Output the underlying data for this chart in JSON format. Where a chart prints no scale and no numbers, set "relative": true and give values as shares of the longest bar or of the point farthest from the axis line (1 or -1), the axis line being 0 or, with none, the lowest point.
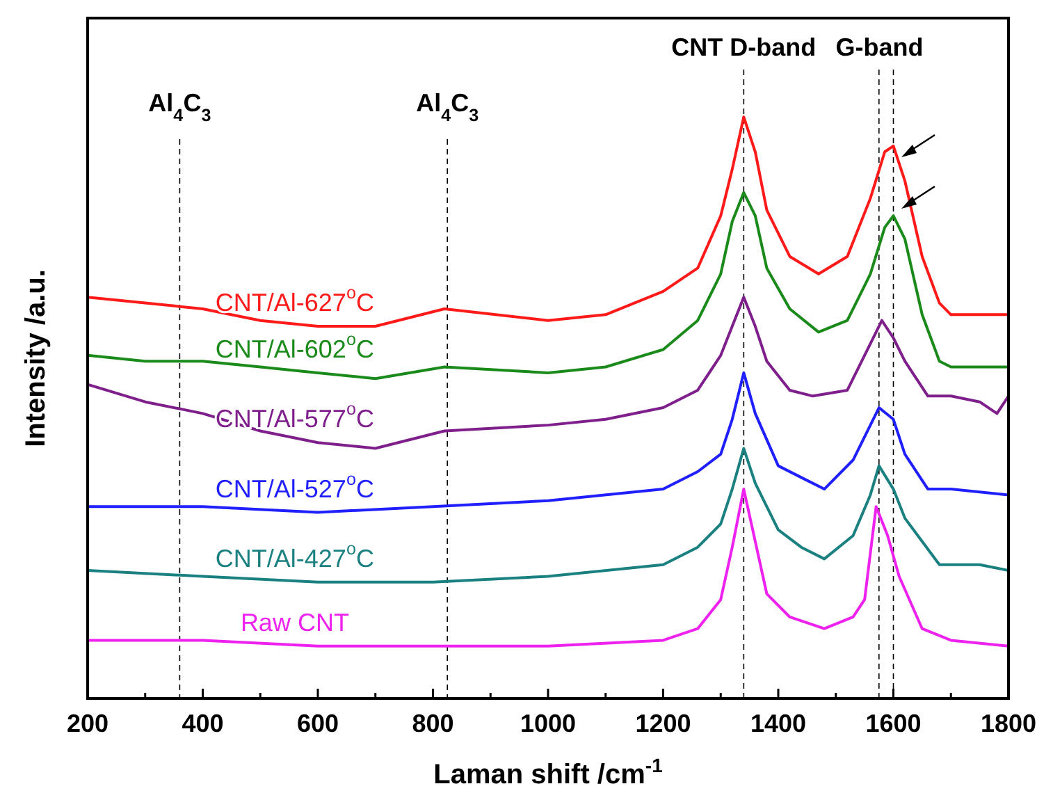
{
  "chart_data": {
    "type": "line",
    "relative": true,
    "xlabel": "Laman shift /cm$^{-1}$",
    "ylabel": "Intensity /a.u.",
    "xlim": [
      200,
      1800
    ],
    "xticks": [
      200,
      {
        "value": 300,
        "label": null
      },
      400,
      {
        "value": 500,
        "label": null
      },
      600,
      {
        "value": 700,
        "label": null
      },
      800,
      {
        "value": 900,
        "label": null
      },
      1000,
      {
        "value": 1100,
        "label": null
      },
      1200,
      {
        "value": 1300,
        "label": null
      },
      1400,
      {
        "value": 1500,
        "label": null
      },
      1600,
      {
        "value": 1700,
        "label": null
      },
      1800
    ],
    "tick_labels": "x",
    "grid": false,
    "marker": "none",
    "line_style": "solid",
    "ref_lines": [
      {
        "axis": "x",
        "value": 360,
        "label": "Al$_{4}$C$_{3}$",
        "color": "#000000",
        "line_style": "dashed"
      },
      {
        "axis": "x",
        "value": 825,
        "label": "Al$_{4}$C$_{3}$",
        "color": "#000000",
        "line_style": "dashed"
      },
      {
        "axis": "x",
        "value": 1340,
        "label": "CNT D-band",
        "color": "#000000",
        "line_style": "dashed"
      },
      {
        "axis": "x",
        "value": 1575,
        "color": "#000000",
        "line_style": "dashed"
      },
      {
        "axis": "x",
        "value": 1600,
        "label": "G-band",
        "color": "#000000",
        "line_style": "dashed"
      }
    ],
    "series": [
      {
        "name": "CNT/Al-627$^{o}$C",
        "color": "#ff1a1a",
        "x": [
          200,
          300,
          400,
          500,
          600,
          700,
          820,
          1000,
          1100,
          1200,
          1260,
          1300,
          1320,
          1340,
          1360,
          1380,
          1420,
          1470,
          1520,
          1560,
          1585,
          1600,
          1620,
          1650,
          1680,
          1700,
          1750,
          1800
        ],
        "values": [
          0.69,
          0.68,
          0.67,
          0.65,
          0.64,
          0.64,
          0.67,
          0.65,
          0.66,
          0.7,
          0.74,
          0.83,
          0.91,
          1.0,
          0.94,
          0.84,
          0.76,
          0.73,
          0.76,
          0.86,
          0.94,
          0.95,
          0.89,
          0.76,
          0.68,
          0.66,
          0.66,
          0.66
        ]
      },
      {
        "name": "CNT/Al-602$^{o}$C",
        "color": "#1a8a1a",
        "x": [
          200,
          300,
          400,
          500,
          600,
          700,
          820,
          1000,
          1100,
          1200,
          1260,
          1300,
          1320,
          1340,
          1360,
          1380,
          1420,
          1470,
          1520,
          1560,
          1585,
          1600,
          1620,
          1650,
          1680,
          1700,
          1750,
          1800
        ],
        "values": [
          0.59,
          0.58,
          0.58,
          0.57,
          0.56,
          0.55,
          0.57,
          0.56,
          0.57,
          0.6,
          0.65,
          0.73,
          0.82,
          0.87,
          0.83,
          0.74,
          0.67,
          0.63,
          0.65,
          0.73,
          0.81,
          0.83,
          0.79,
          0.66,
          0.58,
          0.57,
          0.57,
          0.57
        ]
      },
      {
        "name": "CNT/Al-577$^{o}$C",
        "color": "#7f1f8c",
        "x": [
          200,
          300,
          400,
          500,
          600,
          700,
          820,
          1000,
          1100,
          1200,
          1260,
          1300,
          1320,
          1340,
          1360,
          1380,
          1420,
          1460,
          1520,
          1560,
          1580,
          1600,
          1620,
          1660,
          1700,
          1750,
          1780,
          1800
        ],
        "values": [
          0.54,
          0.51,
          0.49,
          0.46,
          0.44,
          0.43,
          0.46,
          0.47,
          0.48,
          0.5,
          0.53,
          0.59,
          0.64,
          0.69,
          0.64,
          0.58,
          0.53,
          0.52,
          0.53,
          0.61,
          0.65,
          0.62,
          0.58,
          0.52,
          0.52,
          0.51,
          0.49,
          0.52
        ]
      },
      {
        "name": "CNT/Al-527$^{o}$C",
        "color": "#1f1fff",
        "x": [
          200,
          400,
          600,
          800,
          1000,
          1200,
          1260,
          1300,
          1320,
          1340,
          1360,
          1400,
          1440,
          1480,
          1530,
          1560,
          1575,
          1600,
          1620,
          1660,
          1700,
          1800
        ],
        "values": [
          0.33,
          0.33,
          0.32,
          0.33,
          0.34,
          0.36,
          0.39,
          0.42,
          0.48,
          0.56,
          0.49,
          0.4,
          0.38,
          0.36,
          0.41,
          0.47,
          0.5,
          0.48,
          0.42,
          0.36,
          0.36,
          0.35
        ]
      },
      {
        "name": "CNT/Al-427$^{o}$C",
        "color": "#1a8080",
        "x": [
          200,
          400,
          600,
          800,
          1000,
          1200,
          1260,
          1300,
          1320,
          1340,
          1360,
          1400,
          1440,
          1480,
          1530,
          1560,
          1575,
          1600,
          1620,
          1680,
          1750,
          1800
        ],
        "values": [
          0.22,
          0.21,
          0.2,
          0.2,
          0.21,
          0.23,
          0.26,
          0.3,
          0.36,
          0.43,
          0.37,
          0.29,
          0.26,
          0.24,
          0.28,
          0.35,
          0.4,
          0.36,
          0.31,
          0.23,
          0.23,
          0.22
        ]
      },
      {
        "name": "Raw CNT",
        "color": "#ee22ee",
        "x": [
          200,
          400,
          600,
          800,
          1000,
          1200,
          1260,
          1300,
          1320,
          1340,
          1360,
          1380,
          1420,
          1480,
          1530,
          1550,
          1570,
          1590,
          1610,
          1650,
          1700,
          1800
        ],
        "values": [
          0.1,
          0.1,
          0.09,
          0.09,
          0.09,
          0.1,
          0.12,
          0.17,
          0.26,
          0.36,
          0.27,
          0.18,
          0.14,
          0.12,
          0.14,
          0.17,
          0.33,
          0.28,
          0.21,
          0.12,
          0.1,
          0.09
        ]
      }
    ]
  }
}
